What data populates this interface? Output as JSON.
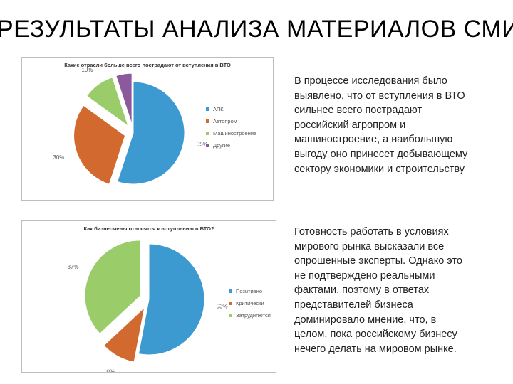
{
  "page": {
    "title": "РЕЗУЛЬТАТЫ АНАЛИЗА МАТЕРИАЛОВ СМИ"
  },
  "text_blocks": [
    {
      "lines": [
        "В процессе исследования было",
        "выявлено, что от вступления в ВТО",
        "сильнее всего пострадают",
        "российский агропром и",
        "машиностроение, а наибольшую",
        "выгоду оно принесет добывающему",
        "сектору экономики и строительству"
      ]
    },
    {
      "lines": [
        "Готовность работать в условиях",
        "мирового рынка высказали все",
        "опрошенные эксперты. Однако это",
        "не подтверждено реальными",
        "фактами, поэтому в ответах",
        "представителей бизнеса",
        "доминировало мнение, что, в",
        "целом, пока российскому бизнесу",
        "нечего делать на мировом рынке."
      ]
    }
  ],
  "chart_data": [
    {
      "type": "pie",
      "title": "Какие отрасли больше всего пострадают от вступления в ВТО",
      "categories": [
        "АПК",
        "Автопром",
        "Машиностроение",
        "Другие"
      ],
      "values": [
        55,
        30,
        10,
        5
      ],
      "labels": [
        "55%",
        "30%",
        "10%",
        "5%"
      ],
      "colors": [
        "#3d9ad1",
        "#d2692f",
        "#9acd6a",
        "#8b5a9c"
      ],
      "exploded": [
        false,
        true,
        true,
        true
      ],
      "legend_position": "right"
    },
    {
      "type": "pie",
      "title": "Как бизнесмены относятся к вступлению в ВТО?",
      "categories": [
        "Позитивно",
        "Критически",
        "Затрудняются"
      ],
      "values": [
        53,
        10,
        37
      ],
      "labels": [
        "53%",
        "10%",
        "37%"
      ],
      "colors": [
        "#3d9ad1",
        "#d2692f",
        "#9acd6a"
      ],
      "exploded": [
        false,
        true,
        true
      ],
      "legend_position": "right"
    }
  ]
}
